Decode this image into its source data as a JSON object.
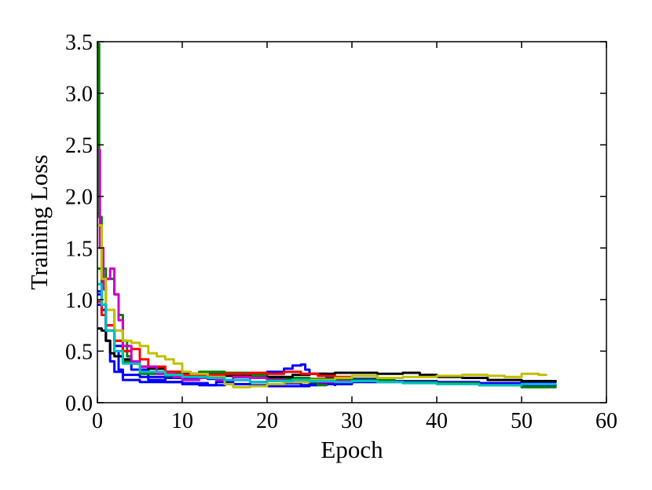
{
  "chart_data": {
    "type": "line",
    "title": "",
    "xlabel": "Epoch",
    "ylabel": "Training Loss",
    "xlim": [
      0,
      60
    ],
    "ylim": [
      0.0,
      3.5
    ],
    "x_ticks": [
      "0",
      "10",
      "20",
      "30",
      "40",
      "50",
      "60"
    ],
    "y_ticks": [
      "0.0",
      "0.5",
      "1.0",
      "1.5",
      "2.0",
      "2.5",
      "3.0",
      "3.5"
    ],
    "x_tick_values": [
      0,
      10,
      20,
      30,
      40,
      50,
      60
    ],
    "y_tick_values": [
      0,
      0.5,
      1.0,
      1.5,
      2.0,
      2.5,
      3.0,
      3.5
    ],
    "grid": false,
    "legend": "none",
    "series": [
      {
        "color": "#0000ff",
        "points": [
          [
            0,
            1.05
          ],
          [
            0.5,
            0.95
          ],
          [
            1,
            0.6
          ],
          [
            1.5,
            0.4
          ],
          [
            2,
            0.3
          ],
          [
            3,
            0.27
          ],
          [
            5,
            0.25
          ],
          [
            8,
            0.24
          ],
          [
            10,
            0.24
          ],
          [
            13,
            0.23
          ],
          [
            15,
            0.22
          ],
          [
            18,
            0.2
          ],
          [
            20,
            0.21
          ],
          [
            22,
            0.19
          ],
          [
            24,
            0.17
          ],
          [
            26,
            0.18
          ],
          [
            28,
            0.16
          ]
        ]
      },
      {
        "color": "#0000ff",
        "points": [
          [
            0,
            1.08
          ],
          [
            0.5,
            0.9
          ],
          [
            1,
            0.7
          ],
          [
            2,
            0.5
          ],
          [
            2.5,
            0.32
          ],
          [
            3,
            0.22
          ],
          [
            5,
            0.2
          ],
          [
            8,
            0.2
          ],
          [
            10,
            0.19
          ],
          [
            13,
            0.17
          ],
          [
            15,
            0.18
          ],
          [
            18,
            0.17
          ],
          [
            20,
            0.16
          ],
          [
            25,
            0.18
          ],
          [
            30,
            0.2
          ],
          [
            35,
            0.21
          ],
          [
            40,
            0.2
          ],
          [
            45,
            0.19
          ],
          [
            50,
            0.2
          ],
          [
            54,
            0.21
          ]
        ]
      },
      {
        "color": "#0000ff",
        "points": [
          [
            0,
            0.95
          ],
          [
            1,
            0.75
          ],
          [
            2,
            0.55
          ],
          [
            3,
            0.4
          ],
          [
            4,
            0.32
          ],
          [
            6,
            0.22
          ],
          [
            8,
            0.2
          ],
          [
            10,
            0.18
          ],
          [
            12,
            0.17
          ],
          [
            14,
            0.2
          ],
          [
            16,
            0.25
          ],
          [
            18,
            0.28
          ],
          [
            20,
            0.3
          ],
          [
            22,
            0.33
          ],
          [
            23,
            0.36
          ],
          [
            24,
            0.37
          ],
          [
            24.5,
            0.32
          ],
          [
            25,
            0.28
          ],
          [
            27,
            0.24
          ],
          [
            30,
            0.23
          ],
          [
            35,
            0.21
          ],
          [
            40,
            0.19
          ],
          [
            45,
            0.18
          ],
          [
            50,
            0.17
          ],
          [
            54,
            0.18
          ]
        ]
      },
      {
        "color": "#008000",
        "points": [
          [
            0,
            3.48
          ],
          [
            0.2,
            1.8
          ],
          [
            0.5,
            1.3
          ],
          [
            1,
            1.2
          ],
          [
            1.5,
            1.2
          ],
          [
            2,
            1.05
          ],
          [
            2.5,
            0.85
          ],
          [
            3,
            0.6
          ],
          [
            3.5,
            0.45
          ],
          [
            4,
            0.4
          ],
          [
            5,
            0.35
          ],
          [
            7,
            0.3
          ],
          [
            9,
            0.28
          ],
          [
            10,
            0.27
          ],
          [
            13,
            0.28
          ],
          [
            16,
            0.26
          ],
          [
            20,
            0.24
          ],
          [
            25,
            0.23
          ],
          [
            30,
            0.22
          ],
          [
            35,
            0.2
          ],
          [
            40,
            0.19
          ],
          [
            45,
            0.17
          ],
          [
            50,
            0.15
          ],
          [
            54,
            0.14
          ]
        ]
      },
      {
        "color": "#008000",
        "points": [
          [
            0,
            1.3
          ],
          [
            0.5,
            1.1
          ],
          [
            1,
            0.9
          ],
          [
            2,
            0.6
          ],
          [
            3,
            0.4
          ],
          [
            5,
            0.28
          ],
          [
            8,
            0.26
          ],
          [
            10,
            0.28
          ],
          [
            12,
            0.3
          ],
          [
            15,
            0.29
          ],
          [
            18,
            0.27
          ],
          [
            20,
            0.25
          ],
          [
            22,
            0.22
          ],
          [
            24,
            0.2
          ],
          [
            26,
            0.17
          ],
          [
            27,
            0.16
          ]
        ]
      },
      {
        "color": "#000000",
        "points": [
          [
            0,
            0.72
          ],
          [
            0.5,
            0.7
          ],
          [
            1,
            0.6
          ],
          [
            1.5,
            0.48
          ],
          [
            2,
            0.45
          ],
          [
            3,
            0.42
          ],
          [
            4,
            0.38
          ],
          [
            5,
            0.35
          ],
          [
            6,
            0.33
          ],
          [
            8,
            0.3
          ],
          [
            10,
            0.28
          ],
          [
            13,
            0.27
          ],
          [
            15,
            0.26
          ],
          [
            18,
            0.24
          ],
          [
            20,
            0.25
          ],
          [
            23,
            0.27
          ],
          [
            25,
            0.28
          ],
          [
            28,
            0.29
          ],
          [
            30,
            0.29
          ],
          [
            33,
            0.28
          ],
          [
            36,
            0.29
          ],
          [
            38,
            0.27
          ],
          [
            40,
            0.25
          ],
          [
            43,
            0.24
          ],
          [
            46,
            0.22
          ],
          [
            50,
            0.21
          ],
          [
            54,
            0.22
          ]
        ]
      },
      {
        "color": "#ff0000",
        "points": [
          [
            0,
            0.98
          ],
          [
            0.5,
            0.85
          ],
          [
            1,
            0.75
          ],
          [
            2,
            0.6
          ],
          [
            3,
            0.5
          ],
          [
            4,
            0.52
          ],
          [
            5,
            0.42
          ],
          [
            6,
            0.35
          ],
          [
            8,
            0.3
          ],
          [
            10,
            0.27
          ],
          [
            12,
            0.27
          ],
          [
            15,
            0.28
          ],
          [
            18,
            0.29
          ],
          [
            20,
            0.28
          ],
          [
            22,
            0.3
          ],
          [
            24,
            0.28
          ],
          [
            26,
            0.26
          ],
          [
            28,
            0.25
          ],
          [
            30,
            0.23
          ]
        ]
      },
      {
        "color": "#cc00cc",
        "points": [
          [
            0,
            2.45
          ],
          [
            0.3,
            1.5
          ],
          [
            0.7,
            1.1
          ],
          [
            1,
            1.2
          ],
          [
            1.5,
            1.3
          ],
          [
            2,
            1.05
          ],
          [
            2.5,
            0.8
          ],
          [
            3,
            0.55
          ],
          [
            4,
            0.4
          ],
          [
            5,
            0.35
          ],
          [
            7,
            0.28
          ],
          [
            9,
            0.25
          ],
          [
            10,
            0.22
          ],
          [
            12,
            0.24
          ],
          [
            14,
            0.22
          ],
          [
            16,
            0.25
          ],
          [
            18,
            0.24
          ],
          [
            20,
            0.22
          ],
          [
            22,
            0.2
          ],
          [
            24,
            0.22
          ],
          [
            26,
            0.2
          ],
          [
            28,
            0.21
          ],
          [
            30,
            0.22
          ]
        ]
      },
      {
        "color": "#bfbf00",
        "points": [
          [
            0,
            1.72
          ],
          [
            0.5,
            1.2
          ],
          [
            1,
            0.9
          ],
          [
            2,
            0.7
          ],
          [
            3,
            0.6
          ],
          [
            4,
            0.58
          ],
          [
            5,
            0.55
          ],
          [
            6,
            0.48
          ],
          [
            7,
            0.45
          ],
          [
            8,
            0.42
          ],
          [
            9,
            0.38
          ],
          [
            10,
            0.3
          ],
          [
            11,
            0.28
          ],
          [
            13,
            0.25
          ],
          [
            15,
            0.18
          ],
          [
            16,
            0.15
          ],
          [
            18,
            0.16
          ],
          [
            20,
            0.18
          ],
          [
            22,
            0.2
          ],
          [
            25,
            0.22
          ],
          [
            28,
            0.24
          ],
          [
            30,
            0.26
          ],
          [
            33,
            0.24
          ],
          [
            36,
            0.25
          ],
          [
            40,
            0.26
          ],
          [
            43,
            0.27
          ],
          [
            46,
            0.26
          ],
          [
            48,
            0.25
          ],
          [
            50,
            0.28
          ],
          [
            52,
            0.27
          ],
          [
            53,
            0.27
          ]
        ]
      },
      {
        "color": "#00bfbf",
        "points": [
          [
            0,
            1.15
          ],
          [
            0.5,
            0.95
          ],
          [
            1,
            0.7
          ],
          [
            2,
            0.5
          ],
          [
            3,
            0.38
          ],
          [
            5,
            0.3
          ],
          [
            8,
            0.27
          ],
          [
            10,
            0.25
          ],
          [
            13,
            0.24
          ],
          [
            15,
            0.22
          ],
          [
            18,
            0.2
          ],
          [
            20,
            0.21
          ],
          [
            23,
            0.22
          ],
          [
            25,
            0.21
          ],
          [
            28,
            0.2
          ],
          [
            30,
            0.21
          ],
          [
            33,
            0.2
          ],
          [
            36,
            0.19
          ],
          [
            40,
            0.18
          ],
          [
            45,
            0.17
          ],
          [
            50,
            0.18
          ],
          [
            54,
            0.17
          ]
        ]
      }
    ]
  }
}
